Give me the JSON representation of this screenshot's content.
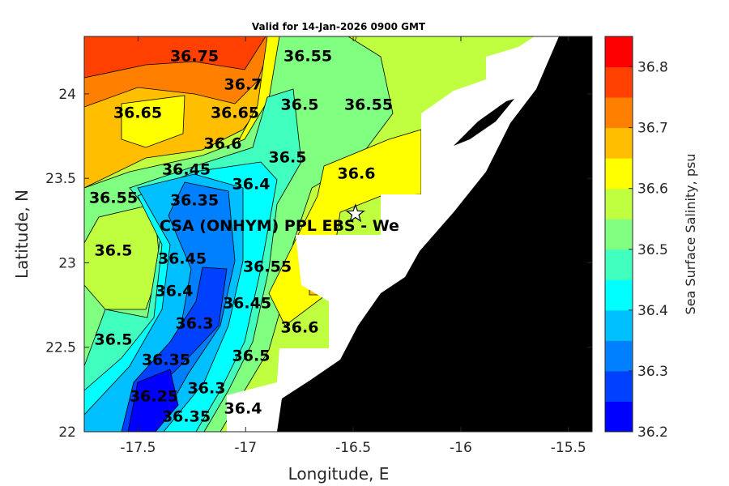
{
  "chart_data": {
    "type": "heatmap",
    "subtype": "filled-contour-map",
    "title": "Valid for 14-Jan-2026 0900 GMT",
    "xlabel": "Longitude, E",
    "ylabel": "Latitude, N",
    "xlim": [
      -17.75,
      -15.39
    ],
    "ylim": [
      22.0,
      24.34
    ],
    "xticks": [
      "-17.5",
      "-17",
      "-16.5",
      "-16",
      "-15.5"
    ],
    "xtick_values": [
      -17.5,
      -17,
      -16.5,
      -16,
      -15.5
    ],
    "yticks": [
      "22",
      "22.5",
      "23",
      "23.5",
      "24"
    ],
    "ytick_values": [
      22,
      22.5,
      23,
      23.5,
      24
    ],
    "colorbar": {
      "label": "Sea Surface Salinity, psu",
      "range": [
        36.2,
        36.85
      ],
      "ticks": [
        "36.2",
        "36.3",
        "36.4",
        "36.5",
        "36.6",
        "36.7",
        "36.8"
      ],
      "tick_values": [
        36.2,
        36.3,
        36.4,
        36.5,
        36.6,
        36.7,
        36.8
      ],
      "levels": [
        36.2,
        36.25,
        36.3,
        36.35,
        36.4,
        36.45,
        36.5,
        36.55,
        36.6,
        36.65,
        36.7,
        36.75,
        36.8,
        36.85
      ],
      "colors": [
        "#0000FF",
        "#0040FF",
        "#0080FF",
        "#00BFFF",
        "#00FFFF",
        "#40FFBF",
        "#80FF80",
        "#BFFF40",
        "#FFFF00",
        "#FFBF00",
        "#FF8000",
        "#FF4000",
        "#FF0000"
      ]
    },
    "contour_labels": [
      "36.75",
      "36.65",
      "36.7",
      "36.65",
      "36.6",
      "36.55",
      "36.5",
      "36.55",
      "36.5",
      "36.6",
      "36.45",
      "36.4",
      "36.35",
      "36.55",
      "36.5",
      "36.45",
      "36.4",
      "36.5",
      "36.35",
      "36.3",
      "36.45",
      "36.55",
      "36.6",
      "36.5",
      "36.25",
      "36.3",
      "36.35",
      "36.4"
    ],
    "station": {
      "label": "CSA (ONHYM) PPL EBS  - We",
      "lon": -16.49,
      "lat": 23.29,
      "marker": "star"
    },
    "land_color": "#000000",
    "nodata_color": "#FFFFFF"
  }
}
